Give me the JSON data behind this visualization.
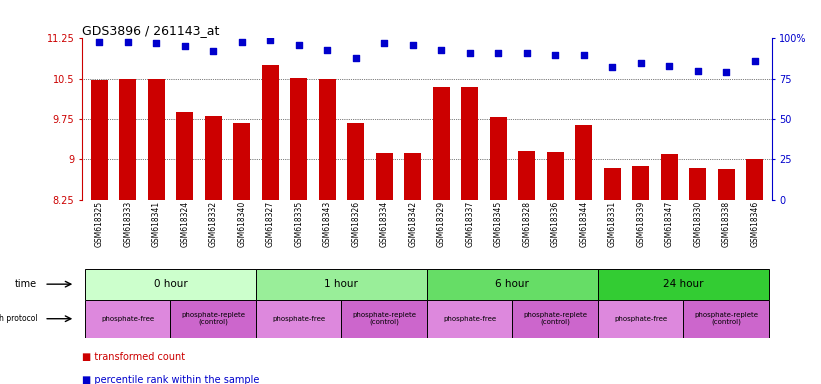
{
  "title": "GDS3896 / 261143_at",
  "samples": [
    "GSM618325",
    "GSM618333",
    "GSM618341",
    "GSM618324",
    "GSM618332",
    "GSM618340",
    "GSM618327",
    "GSM618335",
    "GSM618343",
    "GSM618326",
    "GSM618334",
    "GSM618342",
    "GSM618329",
    "GSM618337",
    "GSM618345",
    "GSM618328",
    "GSM618336",
    "GSM618344",
    "GSM618331",
    "GSM618339",
    "GSM618347",
    "GSM618330",
    "GSM618338",
    "GSM618346"
  ],
  "bar_values": [
    10.47,
    10.5,
    10.5,
    9.88,
    9.8,
    9.68,
    10.75,
    10.52,
    10.5,
    9.68,
    9.12,
    9.11,
    10.35,
    10.35,
    9.79,
    9.16,
    9.14,
    9.63,
    8.84,
    8.88,
    9.1,
    8.83,
    8.82,
    9.0
  ],
  "percentile_values": [
    98,
    98,
    97,
    95,
    92,
    98,
    99,
    96,
    93,
    88,
    97,
    96,
    93,
    91,
    91,
    91,
    90,
    90,
    82,
    85,
    83,
    80,
    79,
    86
  ],
  "bar_color": "#cc0000",
  "percentile_color": "#0000cc",
  "ymin": 8.25,
  "ymax": 11.25,
  "yticks": [
    8.25,
    9.0,
    9.75,
    10.5,
    11.25
  ],
  "ytick_labels": [
    "8.25",
    "9",
    "9.75",
    "10.5",
    "11.25"
  ],
  "y2min": 0,
  "y2max": 100,
  "y2ticks": [
    0,
    25,
    50,
    75,
    100
  ],
  "y2tick_labels": [
    "0",
    "25",
    "50",
    "75",
    "100%"
  ],
  "grid_lines": [
    9.0,
    9.75,
    10.5
  ],
  "time_groups": [
    {
      "label": "0 hour",
      "start": 0,
      "end": 6,
      "color": "#ccffcc"
    },
    {
      "label": "1 hour",
      "start": 6,
      "end": 12,
      "color": "#99ee99"
    },
    {
      "label": "6 hour",
      "start": 12,
      "end": 18,
      "color": "#66dd66"
    },
    {
      "label": "24 hour",
      "start": 18,
      "end": 24,
      "color": "#33cc33"
    }
  ],
  "protocol_groups": [
    {
      "label": "phosphate-free",
      "start": 0,
      "end": 3,
      "color": "#dd88dd"
    },
    {
      "label": "phosphate-replete\n(control)",
      "start": 3,
      "end": 6,
      "color": "#cc66cc"
    },
    {
      "label": "phosphate-free",
      "start": 6,
      "end": 9,
      "color": "#dd88dd"
    },
    {
      "label": "phosphate-replete\n(control)",
      "start": 9,
      "end": 12,
      "color": "#cc66cc"
    },
    {
      "label": "phosphate-free",
      "start": 12,
      "end": 15,
      "color": "#dd88dd"
    },
    {
      "label": "phosphate-replete\n(control)",
      "start": 15,
      "end": 18,
      "color": "#cc66cc"
    },
    {
      "label": "phosphate-free",
      "start": 18,
      "end": 21,
      "color": "#dd88dd"
    },
    {
      "label": "phosphate-replete\n(control)",
      "start": 21,
      "end": 24,
      "color": "#cc66cc"
    }
  ],
  "bg_color": "#ffffff",
  "tick_label_color_left": "#cc0000",
  "tick_label_color_right": "#0000cc"
}
